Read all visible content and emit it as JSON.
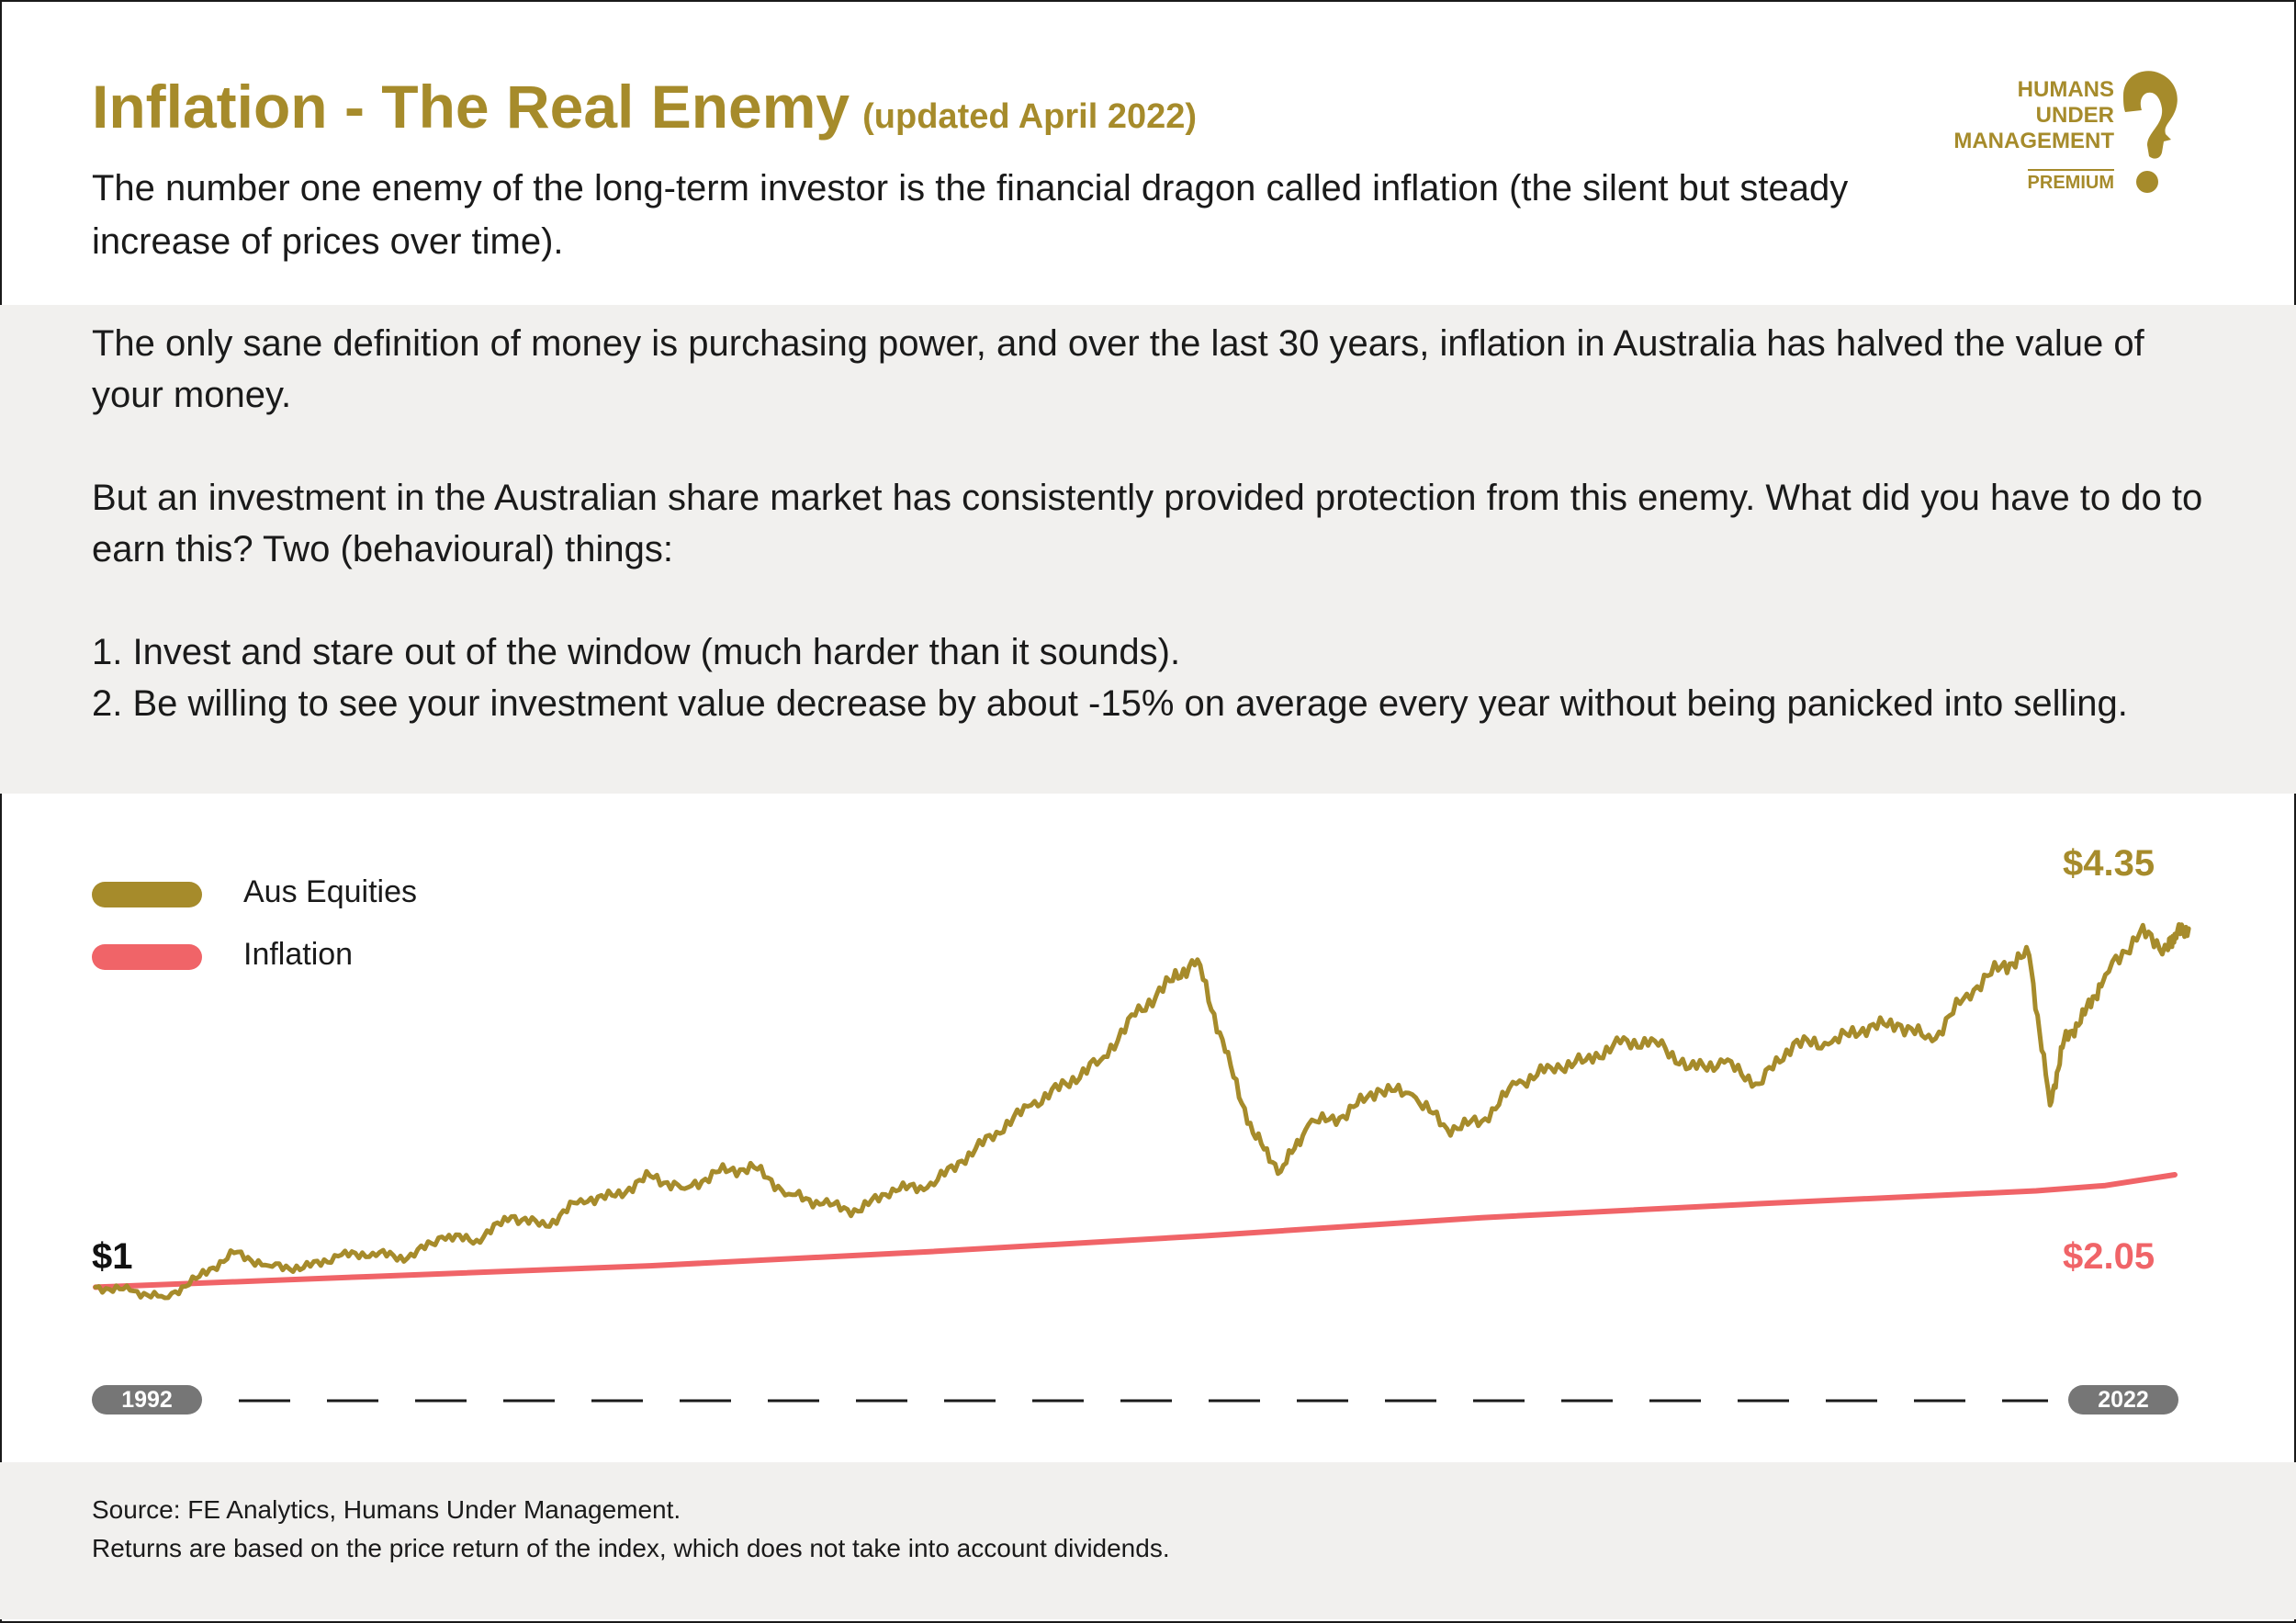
{
  "header": {
    "title": "Inflation - The Real Enemy",
    "title_note": "(updated April 2022)",
    "subtitle": "The number one enemy of the long-term investor is the financial dragon called inflation (the silent but steady increase of prices over time)."
  },
  "logo": {
    "line1": "HUMANS",
    "line2": "UNDER",
    "line3": "MANAGEMENT",
    "tier": "PREMIUM",
    "icon": "question-mark-head-icon"
  },
  "intro": {
    "p1": "The only sane definition of money is purchasing power, and over the last 30 years, inflation in Australia has halved the value of your money.",
    "p2": "But an investment in the Australian share market has consistently provided protection from this enemy. What did you have to do to earn this? Two (behavioural) things:",
    "item1": "1. Invest and stare out of the window (much harder than it sounds).",
    "item2": "2. Be willing to see your investment value decrease by about -15% on average every year without being panicked into selling."
  },
  "footer": {
    "source": "Source: FE Analytics, Humans Under Management.",
    "note": "Returns are based on the price return of the index, which does not take into account dividends."
  },
  "colors": {
    "gold": "#a68b2b",
    "red": "#f06468",
    "panel": "#f1f0ee",
    "pill": "#767676"
  },
  "chart_data": {
    "type": "line",
    "title": "",
    "xlabel": "",
    "ylabel": "",
    "x_range": [
      1992,
      2022
    ],
    "x_tick_labels": [
      "1992",
      "2022"
    ],
    "ylim": [
      0.6,
      5.2
    ],
    "grid": false,
    "legend_position": "top-left",
    "start_label": "$1",
    "series": [
      {
        "name": "Aus Equities",
        "color": "#a68b2b",
        "end_label": "$4.35",
        "x": [
          1992.0,
          1992.5,
          1993.0,
          1993.5,
          1994.0,
          1994.5,
          1995.0,
          1995.5,
          1996.0,
          1996.5,
          1997.0,
          1997.5,
          1998.0,
          1998.5,
          1999.0,
          1999.5,
          2000.0,
          2000.5,
          2001.0,
          2001.5,
          2002.0,
          2002.5,
          2003.0,
          2003.5,
          2004.0,
          2004.5,
          2005.0,
          2005.5,
          2006.0,
          2006.5,
          2007.0,
          2007.5,
          2007.9,
          2008.3,
          2008.7,
          2009.1,
          2009.5,
          2010.0,
          2010.5,
          2011.0,
          2011.5,
          2012.0,
          2012.5,
          2013.0,
          2013.5,
          2014.0,
          2014.5,
          2015.0,
          2015.5,
          2016.0,
          2016.5,
          2017.0,
          2017.5,
          2018.0,
          2018.5,
          2019.0,
          2019.5,
          2019.9,
          2020.2,
          2020.4,
          2020.7,
          2021.0,
          2021.5,
          2021.9,
          2022.0,
          2022.2
        ],
        "values": [
          1.0,
          0.97,
          0.9,
          1.1,
          1.32,
          1.2,
          1.18,
          1.29,
          1.32,
          1.27,
          1.47,
          1.44,
          1.66,
          1.57,
          1.82,
          1.85,
          2.04,
          1.92,
          2.08,
          2.12,
          1.87,
          1.78,
          1.71,
          1.92,
          1.93,
          2.18,
          2.45,
          2.7,
          2.9,
          3.12,
          3.54,
          3.86,
          4.06,
          3.2,
          2.44,
          2.08,
          2.52,
          2.6,
          2.85,
          2.8,
          2.48,
          2.55,
          2.9,
          3.05,
          3.12,
          3.28,
          3.3,
          3.05,
          3.1,
          2.9,
          3.28,
          3.27,
          3.42,
          3.46,
          3.3,
          3.74,
          4.0,
          4.1,
          2.7,
          3.3,
          3.55,
          3.92,
          4.32,
          4.15,
          4.3,
          4.35
        ]
      },
      {
        "name": "Inflation",
        "color": "#f06468",
        "end_label": "$2.05",
        "x": [
          1992,
          1996,
          2000,
          2004,
          2008,
          2012,
          2016,
          2020,
          2021,
          2022
        ],
        "values": [
          1.0,
          1.1,
          1.2,
          1.33,
          1.48,
          1.65,
          1.78,
          1.9,
          1.95,
          2.05
        ]
      }
    ]
  }
}
